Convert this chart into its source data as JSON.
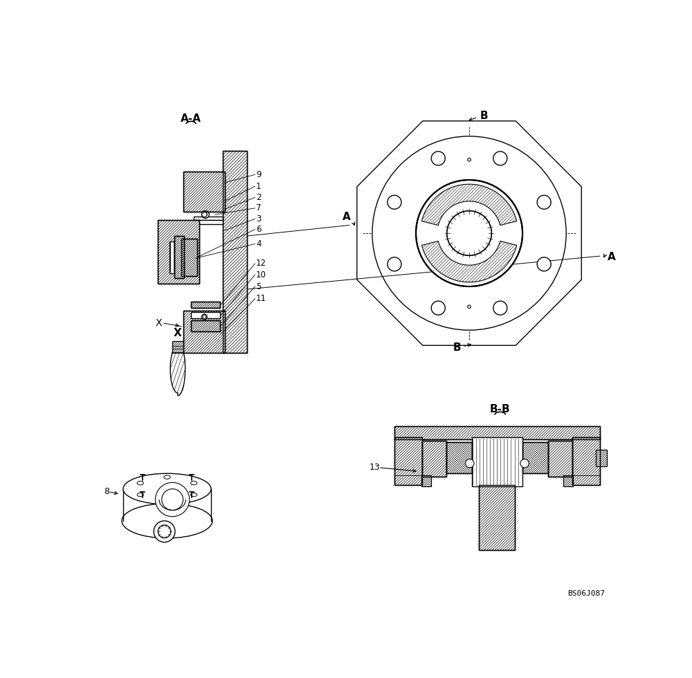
{
  "bg_color": "#ffffff",
  "line_color": "#000000",
  "watermark": "BS06J087",
  "aa_label": "A-A",
  "bb_label": "B-B",
  "x_label": "X",
  "parts_aa": [
    9,
    1,
    2,
    7,
    3,
    6,
    4,
    12,
    10,
    5,
    11
  ],
  "part8": 8,
  "part13": 13
}
